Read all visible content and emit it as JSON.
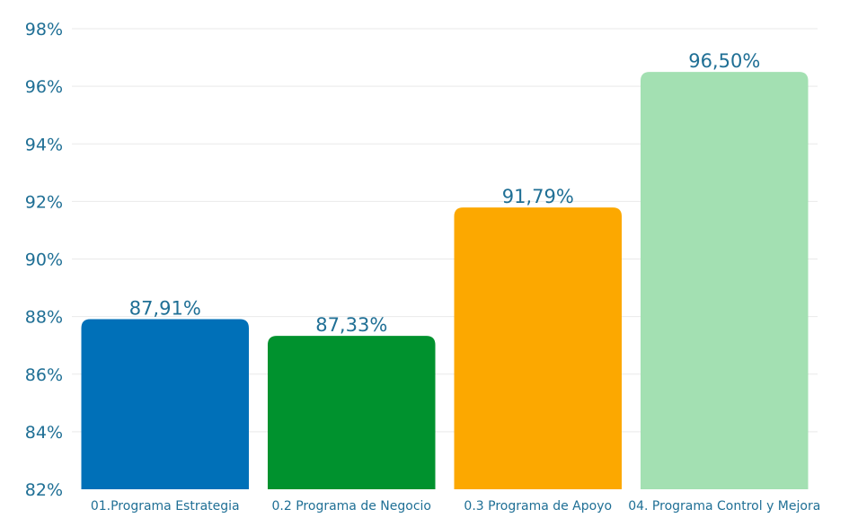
{
  "chart_data": {
    "type": "bar",
    "title": "",
    "xlabel": "",
    "ylabel": "",
    "categories": [
      "01.Programa Estrategia",
      "0.2 Programa de Negocio",
      "0.3 Programa de Apoyo",
      "04. Programa Control y Mejora"
    ],
    "values": [
      87.91,
      87.33,
      91.79,
      96.5
    ],
    "data_labels": [
      "87,91%",
      "87,33%",
      "91,79%",
      "96,50%"
    ],
    "colors": [
      "#0070b8",
      "#00922e",
      "#fca800",
      "#a3e0b2"
    ],
    "ylim": [
      82,
      98
    ],
    "yticks": [
      82,
      84,
      86,
      88,
      90,
      92,
      94,
      96,
      98
    ],
    "ytick_labels": [
      "82%",
      "84%",
      "86%",
      "88%",
      "90%",
      "92%",
      "94%",
      "96%",
      "98%"
    ],
    "grid": true,
    "legend": "none"
  },
  "colors": {
    "text": "#1f6f95",
    "grid": "#e9e9e9"
  }
}
